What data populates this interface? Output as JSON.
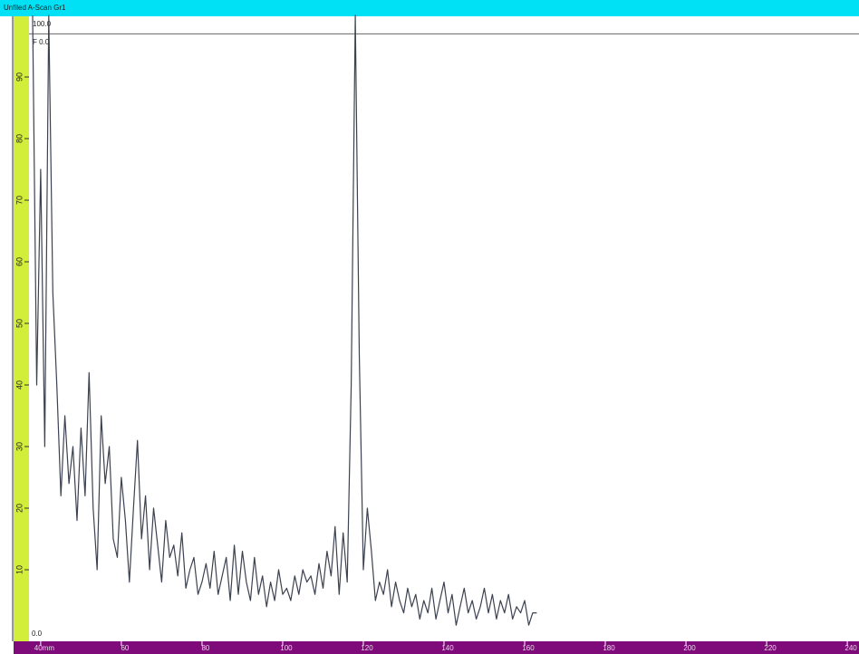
{
  "chart_data": {
    "type": "line",
    "title": "Unfiled A-Scan Gr1",
    "annotations": [
      "100.0",
      "F 0.0",
      "0.0"
    ],
    "xlim": [
      37.1,
      242.9
    ],
    "ylim": [
      0,
      100
    ],
    "xticks": [
      {
        "value": 40,
        "label": "40mm"
      },
      60,
      80,
      100,
      120,
      140,
      160,
      180,
      200,
      220,
      240
    ],
    "yticks": [
      10,
      20,
      30,
      40,
      50,
      60,
      70,
      80,
      90
    ],
    "gate_level": 97,
    "series": [
      {
        "color": "#3c4150",
        "x": [
          38,
          39,
          40,
          41,
          42,
          43,
          44,
          45,
          46,
          47,
          48,
          49,
          50,
          51,
          52,
          53,
          54,
          55,
          56,
          57,
          58,
          59,
          60,
          61,
          62,
          63,
          64,
          65,
          66,
          67,
          68,
          69,
          70,
          71,
          72,
          73,
          74,
          75,
          76,
          77,
          78,
          79,
          80,
          81,
          82,
          83,
          84,
          85,
          86,
          87,
          88,
          89,
          90,
          91,
          92,
          93,
          94,
          95,
          96,
          97,
          98,
          99,
          100,
          101,
          102,
          103,
          104,
          105,
          106,
          107,
          108,
          109,
          110,
          111,
          112,
          113,
          114,
          115,
          116,
          117,
          118,
          119,
          120,
          121,
          122,
          123,
          124,
          125,
          126,
          127,
          128,
          129,
          130,
          131,
          132,
          133,
          134,
          135,
          136,
          137,
          138,
          139,
          140,
          141,
          142,
          143,
          144,
          145,
          146,
          147,
          148,
          149,
          150,
          151,
          152,
          153,
          154,
          155,
          156,
          157,
          158,
          159,
          160,
          161,
          162,
          163
        ],
        "values": [
          100,
          40,
          75,
          30,
          100,
          55,
          40,
          22,
          35,
          24,
          30,
          18,
          33,
          22,
          42,
          20,
          10,
          35,
          24,
          30,
          15,
          12,
          25,
          18,
          8,
          20,
          31,
          15,
          22,
          10,
          20,
          14,
          8,
          18,
          12,
          14,
          9,
          16,
          7,
          10,
          12,
          6,
          8,
          11,
          7,
          13,
          6,
          9,
          12,
          5,
          14,
          6,
          13,
          8,
          5,
          12,
          6,
          9,
          4,
          8,
          5,
          10,
          6,
          7,
          5,
          9,
          6,
          10,
          8,
          9,
          6,
          11,
          7,
          13,
          9,
          17,
          6,
          16,
          8,
          40,
          100,
          45,
          10,
          20,
          13,
          5,
          8,
          6,
          10,
          4,
          8,
          5,
          3,
          7,
          4,
          6,
          2,
          5,
          3,
          7,
          2,
          5,
          8,
          3,
          6,
          1,
          4,
          7,
          3,
          5,
          2,
          4,
          7,
          3,
          6,
          2,
          5,
          3,
          6,
          2,
          4,
          3,
          5,
          1,
          3,
          3
        ]
      }
    ]
  }
}
